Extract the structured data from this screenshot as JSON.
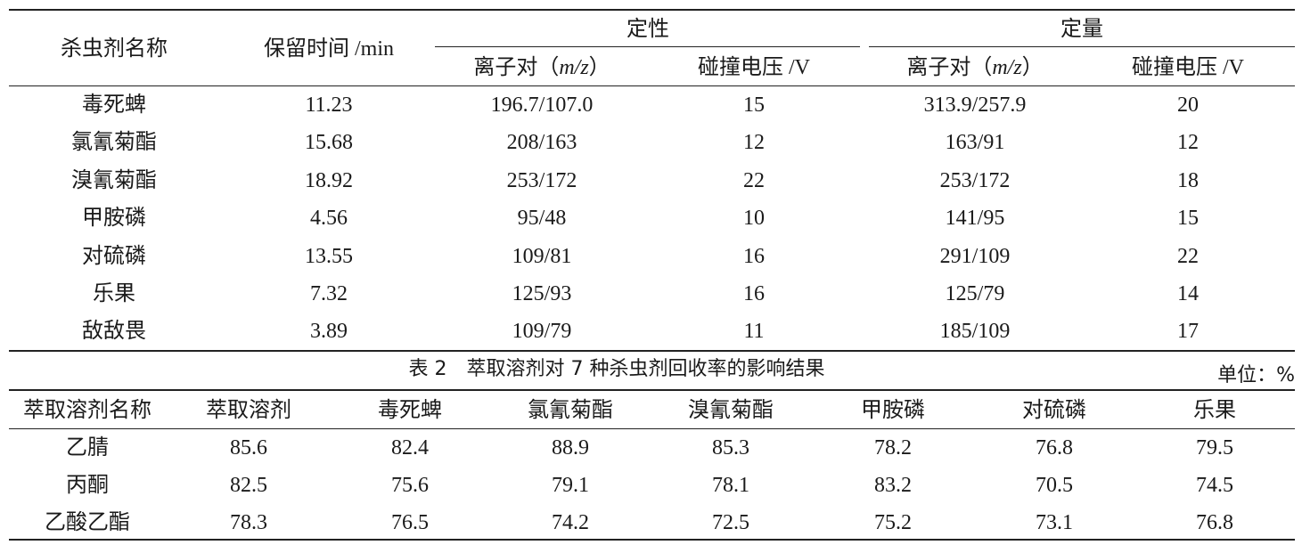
{
  "table1": {
    "header": {
      "name": "杀虫剂名称",
      "retention": "保留时间 /min",
      "qual": "定性",
      "quant": "定量",
      "ion_pair_prefix": "离子对（",
      "ion_pair_var": "m/z",
      "ion_pair_suffix": "）",
      "collision_voltage": "碰撞电压 /V"
    },
    "rows": [
      {
        "name": "毒死蜱",
        "rt": "11.23",
        "qual_ion": "196.7/107.0",
        "qual_v": "15",
        "quant_ion": "313.9/257.9",
        "quant_v": "20"
      },
      {
        "name": "氯氰菊酯",
        "rt": "15.68",
        "qual_ion": "208/163",
        "qual_v": "12",
        "quant_ion": "163/91",
        "quant_v": "12"
      },
      {
        "name": "溴氰菊酯",
        "rt": "18.92",
        "qual_ion": "253/172",
        "qual_v": "22",
        "quant_ion": "253/172",
        "quant_v": "18"
      },
      {
        "name": "甲胺磷",
        "rt": "4.56",
        "qual_ion": "95/48",
        "qual_v": "10",
        "quant_ion": "141/95",
        "quant_v": "15"
      },
      {
        "name": "对硫磷",
        "rt": "13.55",
        "qual_ion": "109/81",
        "qual_v": "16",
        "quant_ion": "291/109",
        "quant_v": "22"
      },
      {
        "name": "乐果",
        "rt": "7.32",
        "qual_ion": "125/93",
        "qual_v": "16",
        "quant_ion": "125/79",
        "quant_v": "14"
      },
      {
        "name": "敌敌畏",
        "rt": "3.89",
        "qual_ion": "109/79",
        "qual_v": "11",
        "quant_ion": "185/109",
        "quant_v": "17"
      }
    ]
  },
  "table2": {
    "caption": "表 2　萃取溶剂对 7 种杀虫剂回收率的影响结果",
    "unit": "单位：%",
    "headers": [
      "萃取溶剂名称",
      "萃取溶剂",
      "毒死蜱",
      "氯氰菊酯",
      "溴氰菊酯",
      "甲胺磷",
      "对硫磷",
      "乐果"
    ],
    "rows": [
      [
        "乙腈",
        "85.6",
        "82.4",
        "88.9",
        "85.3",
        "78.2",
        "76.8",
        "79.5"
      ],
      [
        "丙酮",
        "82.5",
        "75.6",
        "79.1",
        "78.1",
        "83.2",
        "70.5",
        "74.5"
      ],
      [
        "乙酸乙酯",
        "78.3",
        "76.5",
        "74.2",
        "72.5",
        "75.2",
        "73.1",
        "76.8"
      ]
    ]
  }
}
